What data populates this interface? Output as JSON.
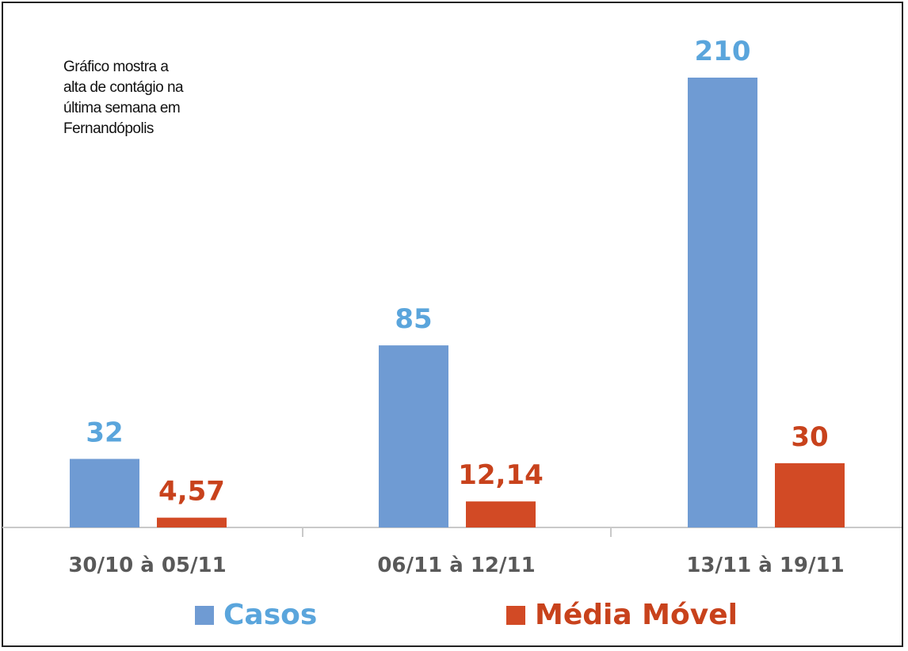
{
  "annotation": {
    "lines": [
      "Gráfico mostra a",
      "alta de contágio na",
      "última semana em",
      "Fernandópolis"
    ]
  },
  "colors": {
    "casos": "#6f9bd3",
    "casos_label": "#5aa5dc",
    "media": "#d24a25",
    "media_label": "#c8421c",
    "axis": "#c9c9c9",
    "category_label": "#595959"
  },
  "legend": {
    "casos": "Casos",
    "media": "Média Móvel"
  },
  "chart_data": {
    "type": "bar",
    "categories": [
      "30/10 à 05/11",
      "06/11 à 12/11",
      "13/11 à 19/11"
    ],
    "series": [
      {
        "name": "Casos",
        "values": [
          32,
          85,
          210
        ],
        "labels": [
          "32",
          "85",
          "210"
        ]
      },
      {
        "name": "Média Móvel",
        "values": [
          4.57,
          12.14,
          30
        ],
        "labels": [
          "4,57",
          "12,14",
          "30"
        ]
      }
    ],
    "title": "",
    "xlabel": "",
    "ylabel": "",
    "ylim": [
      0,
      210
    ],
    "grid": false,
    "legend_position": "bottom"
  }
}
